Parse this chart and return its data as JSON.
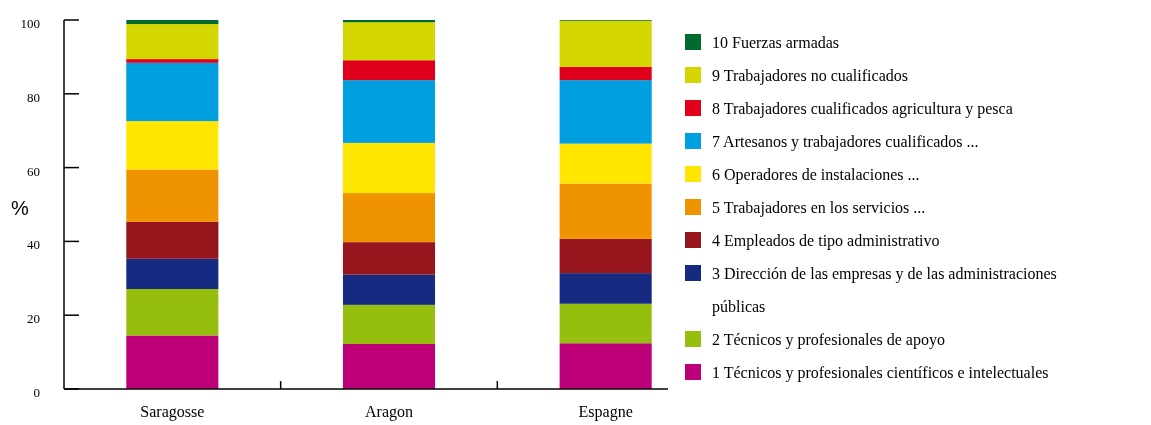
{
  "chart_data": {
    "type": "bar",
    "stacked": true,
    "ylabel": "%",
    "categories": [
      "Saragosse",
      "Aragon",
      "Espagne"
    ],
    "ylim": [
      0,
      100
    ],
    "yticks": [
      0,
      20,
      40,
      60,
      80,
      100
    ],
    "grid": false,
    "legend": "right",
    "series": [
      {
        "name": "1 Técnicos y profesionales científicos e intelectuales",
        "color": "#be0078",
        "values": [
          14.5,
          12.2,
          12.4
        ]
      },
      {
        "name": "2 Técnicos y profesionales de apoyo",
        "color": "#96be0f",
        "values": [
          12.6,
          10.6,
          10.7
        ]
      },
      {
        "name": "3 Dirección de las empresas y de las administraciones públicas",
        "color": "#162a82",
        "values": [
          8.2,
          8.2,
          8.3
        ]
      },
      {
        "name": "4 Empleados de tipo administrativo",
        "color": "#96141b",
        "values": [
          10.0,
          8.8,
          9.3
        ]
      },
      {
        "name": "5 Trabajadores en los servicios ...",
        "color": "#f09300",
        "values": [
          14.2,
          13.3,
          15.0
        ]
      },
      {
        "name": "6 Operadores de instalaciones ...",
        "color": "#ffe600",
        "values": [
          13.1,
          13.6,
          10.8
        ]
      },
      {
        "name": "7 Artesanos y trabajadores cualificados ...",
        "color": "#009fdf",
        "values": [
          15.8,
          17.0,
          17.2
        ]
      },
      {
        "name": "8 Trabajadores cualificados agricultura y pesca",
        "color": "#e0001b",
        "values": [
          1.0,
          5.4,
          3.6
        ]
      },
      {
        "name": "9 Trabajadores no cualificados",
        "color": "#d4d600",
        "values": [
          9.5,
          10.3,
          12.5
        ]
      },
      {
        "name": "10 Fuerzas armadas",
        "color": "#006b2d",
        "values": [
          1.1,
          0.6,
          0.2
        ]
      }
    ]
  }
}
